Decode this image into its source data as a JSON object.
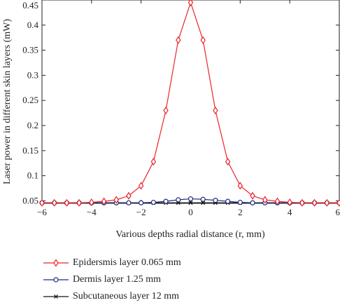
{
  "chart_data": {
    "type": "line",
    "xlabel": "Various depths radial distance (r, mm)",
    "ylabel": "Laser power in different skin layers (mW)",
    "xlim": [
      -6,
      6
    ],
    "ylim": [
      0.045,
      0.45
    ],
    "xticks": [
      "-6",
      "-4",
      "-2",
      "0",
      "2",
      "4",
      "6"
    ],
    "yticks": [
      "0.05",
      "0.1",
      "0.15",
      "0.2",
      "0.25",
      "0.3",
      "0.35",
      "0.4",
      "0.45"
    ],
    "grid": false,
    "legend_position": "bottom",
    "x": [
      -6,
      -5.5,
      -5,
      -4.5,
      -4,
      -3.5,
      -3,
      -2.5,
      -2,
      -1.5,
      -1,
      -0.5,
      0,
      0.5,
      1,
      1.5,
      2,
      2.5,
      3,
      3.5,
      4,
      4.5,
      5,
      5.5,
      6
    ],
    "series": [
      {
        "name": "Epidersmis layer 0.065 mm",
        "color": "#e8262a",
        "marker": "diamond",
        "values": [
          0.046,
          0.046,
          0.046,
          0.046,
          0.047,
          0.049,
          0.052,
          0.06,
          0.08,
          0.128,
          0.23,
          0.37,
          0.445,
          0.37,
          0.23,
          0.128,
          0.08,
          0.06,
          0.052,
          0.049,
          0.047,
          0.046,
          0.046,
          0.046,
          0.046
        ]
      },
      {
        "name": "Dermis layer 1.25 mm",
        "color": "#1f2a7a",
        "marker": "circle",
        "values": [
          0.046,
          0.046,
          0.046,
          0.046,
          0.046,
          0.046,
          0.046,
          0.046,
          0.046,
          0.047,
          0.049,
          0.052,
          0.054,
          0.053,
          0.051,
          0.049,
          0.047,
          0.046,
          0.046,
          0.046,
          0.046,
          0.046,
          0.046,
          0.046,
          0.046
        ]
      },
      {
        "name": "Subcutaneous layer 12 mm",
        "color": "#111111",
        "marker": "x",
        "values": [
          0.046,
          0.046,
          0.046,
          0.046,
          0.046,
          0.046,
          0.046,
          0.046,
          0.046,
          0.046,
          0.046,
          0.046,
          0.046,
          0.046,
          0.046,
          0.046,
          0.046,
          0.046,
          0.046,
          0.046,
          0.046,
          0.046,
          0.046,
          0.046,
          0.046
        ]
      }
    ]
  }
}
